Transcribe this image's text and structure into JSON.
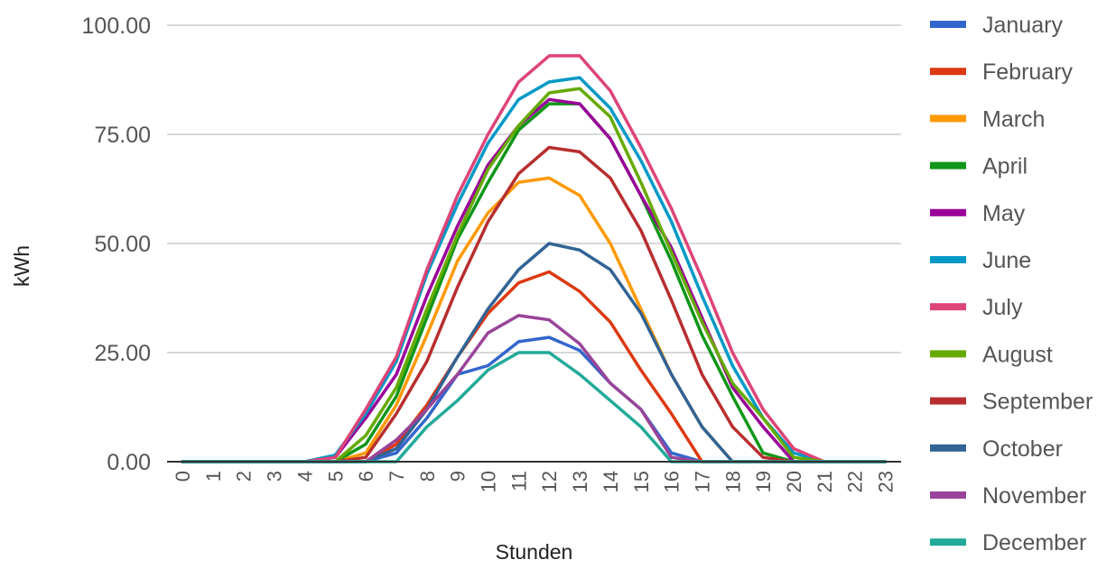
{
  "chart_data": {
    "type": "line",
    "title": "",
    "xlabel": "Stunden",
    "ylabel": "kWh",
    "x": [
      0,
      1,
      2,
      3,
      4,
      5,
      6,
      7,
      8,
      9,
      10,
      11,
      12,
      13,
      14,
      15,
      16,
      17,
      18,
      19,
      20,
      21,
      22,
      23
    ],
    "x_tick_labels": [
      "0",
      "1",
      "2",
      "3",
      "4",
      "5",
      "6",
      "7",
      "8",
      "9",
      "10",
      "11",
      "12",
      "13",
      "14",
      "15",
      "16",
      "17",
      "18",
      "19",
      "20",
      "21",
      "22",
      "23"
    ],
    "ylim": [
      0,
      100
    ],
    "y_ticks": [
      0,
      25,
      50,
      75,
      100
    ],
    "y_tick_labels": [
      "0.00",
      "25.00",
      "50.00",
      "75.00",
      "100.00"
    ],
    "grid": "horizontal",
    "legend_position": "right",
    "series": [
      {
        "name": "January",
        "color": "#3366cc",
        "values": [
          0,
          0,
          0,
          0,
          0,
          0,
          0,
          2,
          10,
          20,
          22,
          27.5,
          28.5,
          25.5,
          18,
          12,
          2,
          0,
          0,
          0,
          0,
          0,
          0,
          0
        ]
      },
      {
        "name": "February",
        "color": "#dc3912",
        "values": [
          0,
          0,
          0,
          0,
          0,
          0,
          0,
          4,
          13,
          24,
          34,
          41,
          43.5,
          39,
          32,
          21,
          11,
          0,
          0,
          0,
          0,
          0,
          0,
          0
        ]
      },
      {
        "name": "March",
        "color": "#ff9900",
        "values": [
          0,
          0,
          0,
          0,
          0,
          0,
          2,
          13,
          29,
          46,
          57,
          64,
          65,
          61,
          50,
          35,
          20,
          8,
          0,
          0,
          0,
          0,
          0,
          0
        ]
      },
      {
        "name": "April",
        "color": "#109618",
        "values": [
          0,
          0,
          0,
          0,
          0,
          0,
          4,
          15,
          33,
          51,
          64,
          76,
          82,
          82,
          74,
          61,
          46,
          29,
          15,
          2,
          0,
          0,
          0,
          0
        ]
      },
      {
        "name": "May",
        "color": "#990099",
        "values": [
          0,
          0,
          0,
          0,
          0,
          1,
          10,
          20,
          38,
          54,
          68,
          77,
          83,
          82,
          74,
          61,
          49,
          33,
          17,
          8,
          0,
          0,
          0,
          0
        ]
      },
      {
        "name": "June",
        "color": "#0099c6",
        "values": [
          0,
          0,
          0,
          0,
          0,
          1.5,
          11,
          23,
          43,
          59,
          73,
          83,
          87,
          88,
          81,
          69,
          55,
          38,
          22,
          10,
          2,
          0,
          0,
          0
        ]
      },
      {
        "name": "July",
        "color": "#dd4477",
        "values": [
          0,
          0,
          0,
          0,
          0,
          1,
          12,
          24,
          44,
          61,
          75,
          87,
          93,
          93,
          85,
          72,
          58,
          42,
          25,
          12,
          3,
          0,
          0,
          0
        ]
      },
      {
        "name": "August",
        "color": "#66aa00",
        "values": [
          0,
          0,
          0,
          0,
          0,
          0,
          6,
          17,
          35,
          52,
          67,
          77,
          84.5,
          85.5,
          79,
          64,
          48,
          32,
          18,
          10,
          1,
          0,
          0,
          0
        ]
      },
      {
        "name": "September",
        "color": "#b82e2e",
        "values": [
          0,
          0,
          0,
          0,
          0,
          0,
          1,
          11,
          23,
          40,
          55,
          66,
          72,
          71,
          65,
          53,
          37,
          20,
          8,
          1,
          0,
          0,
          0,
          0
        ]
      },
      {
        "name": "October",
        "color": "#316395",
        "values": [
          0,
          0,
          0,
          0,
          0,
          0,
          0,
          3,
          12,
          24,
          35,
          44,
          50,
          48.5,
          44,
          34,
          20,
          8,
          0,
          0,
          0,
          0,
          0,
          0
        ]
      },
      {
        "name": "November",
        "color": "#994499",
        "values": [
          0,
          0,
          0,
          0,
          0,
          0,
          0,
          5,
          12,
          20,
          29.5,
          33.5,
          32.5,
          27,
          18,
          12,
          1,
          0,
          0,
          0,
          0,
          0,
          0,
          0
        ]
      },
      {
        "name": "December",
        "color": "#22aa99",
        "values": [
          0,
          0,
          0,
          0,
          0,
          0,
          0,
          0,
          8,
          14,
          21,
          25,
          25,
          20,
          14,
          8,
          0,
          0,
          0,
          0,
          0,
          0,
          0,
          0
        ]
      }
    ]
  }
}
